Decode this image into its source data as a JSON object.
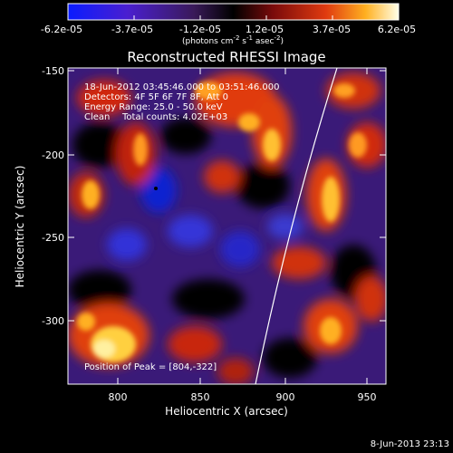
{
  "colorbar": {
    "ticks": [
      "-6.2e-05",
      "-3.7e-05",
      "-1.2e-05",
      "1.2e-05",
      "3.7e-05",
      "6.2e-05"
    ],
    "units_prefix": "(photons cm",
    "units_exp1": "-2",
    "units_mid": " s",
    "units_exp2": "-1",
    "units_mid2": " asec",
    "units_exp3": "-2",
    "units_suffix": ")"
  },
  "title": "Reconstructed RHESSI Image",
  "info": {
    "time_range": "18-Jun-2012 03:45:46.000 to 03:51:46.000",
    "detectors": "Detectors: 4F 5F 6F 7F 8F, Att 0",
    "energy": "Energy Range: 25.0 - 50.0 keV",
    "algorithm": "Clean",
    "counts": "Total counts: 4.02E+03"
  },
  "peak_label": "Position of Peak = [804,-322]",
  "axes": {
    "xlabel": "Heliocentric X (arcsec)",
    "ylabel": "Heliocentric Y (arcsec)",
    "xticks": [
      "800",
      "850",
      "900",
      "950"
    ],
    "yticks": [
      "-150",
      "-200",
      "-250",
      "-300"
    ]
  },
  "timestamp": "8-Jun-2013 23:13"
}
